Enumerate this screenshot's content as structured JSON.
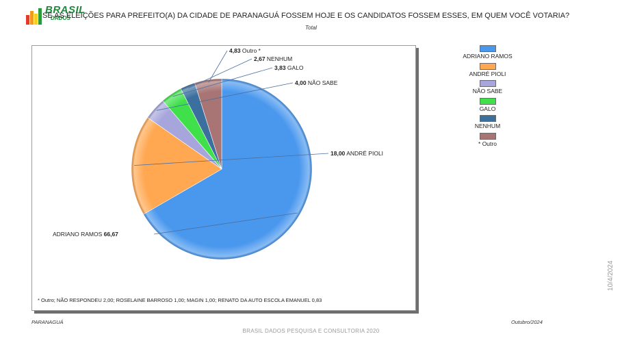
{
  "header": {
    "logo_text": "BRASIL",
    "logo_sub": "DADOS",
    "title": "SE AS ELEIÇÕES PARA PREFEITO(A) DA CIDADE DE PARANAGUÁ FOSSEM HOJE E OS CANDIDATOS FOSSEM ESSES, EM QUEM VOCÊ VOTARIA?",
    "subtitle": "Total"
  },
  "chart_data": {
    "type": "pie",
    "title": "",
    "slices": [
      {
        "label": "ADRIANO RAMOS",
        "value": 66.67,
        "display": "66,67",
        "color": "#4a98ee"
      },
      {
        "label": "ANDRÉ PIOLI",
        "value": 18.0,
        "display": "18,00",
        "color": "#ffa851"
      },
      {
        "label": "NÃO SABE",
        "value": 4.0,
        "display": "4,00",
        "color": "#a6a6dc"
      },
      {
        "label": "GALO",
        "value": 3.83,
        "display": "3,83",
        "color": "#3fe04a"
      },
      {
        "label": "NENHUM",
        "value": 2.67,
        "display": "2,67",
        "color": "#3a6f9e"
      },
      {
        "label": "Outro *",
        "value": 4.83,
        "display": "4,83",
        "color": "#a87474"
      }
    ],
    "legend": {
      "placement": "right",
      "items": [
        {
          "label": "ADRIANO RAMOS",
          "color": "#4a98ee"
        },
        {
          "label": "ANDRÉ PIOLI",
          "color": "#ffa851"
        },
        {
          "label": "NÃO SABE",
          "color": "#a6a6dc"
        },
        {
          "label": "GALO",
          "color": "#3fe04a"
        },
        {
          "label": "NENHUM",
          "color": "#3a6f9e"
        },
        {
          "label": "* Outro",
          "color": "#a87474"
        }
      ]
    },
    "footnote": "* Outro; NÃO RESPONDEU 2,00; ROSELAINE BARROSO 1,00; MAGIN 1,00; RENATO DA AUTO ESCOLA EMANUEL 0,83"
  },
  "footer": {
    "left": "PARANAGUÁ",
    "right": "Outubro/2024",
    "center": "BRASIL DADOS  PESQUISA E CONSULTORIA  2020",
    "side_date": "10/4/2024"
  }
}
